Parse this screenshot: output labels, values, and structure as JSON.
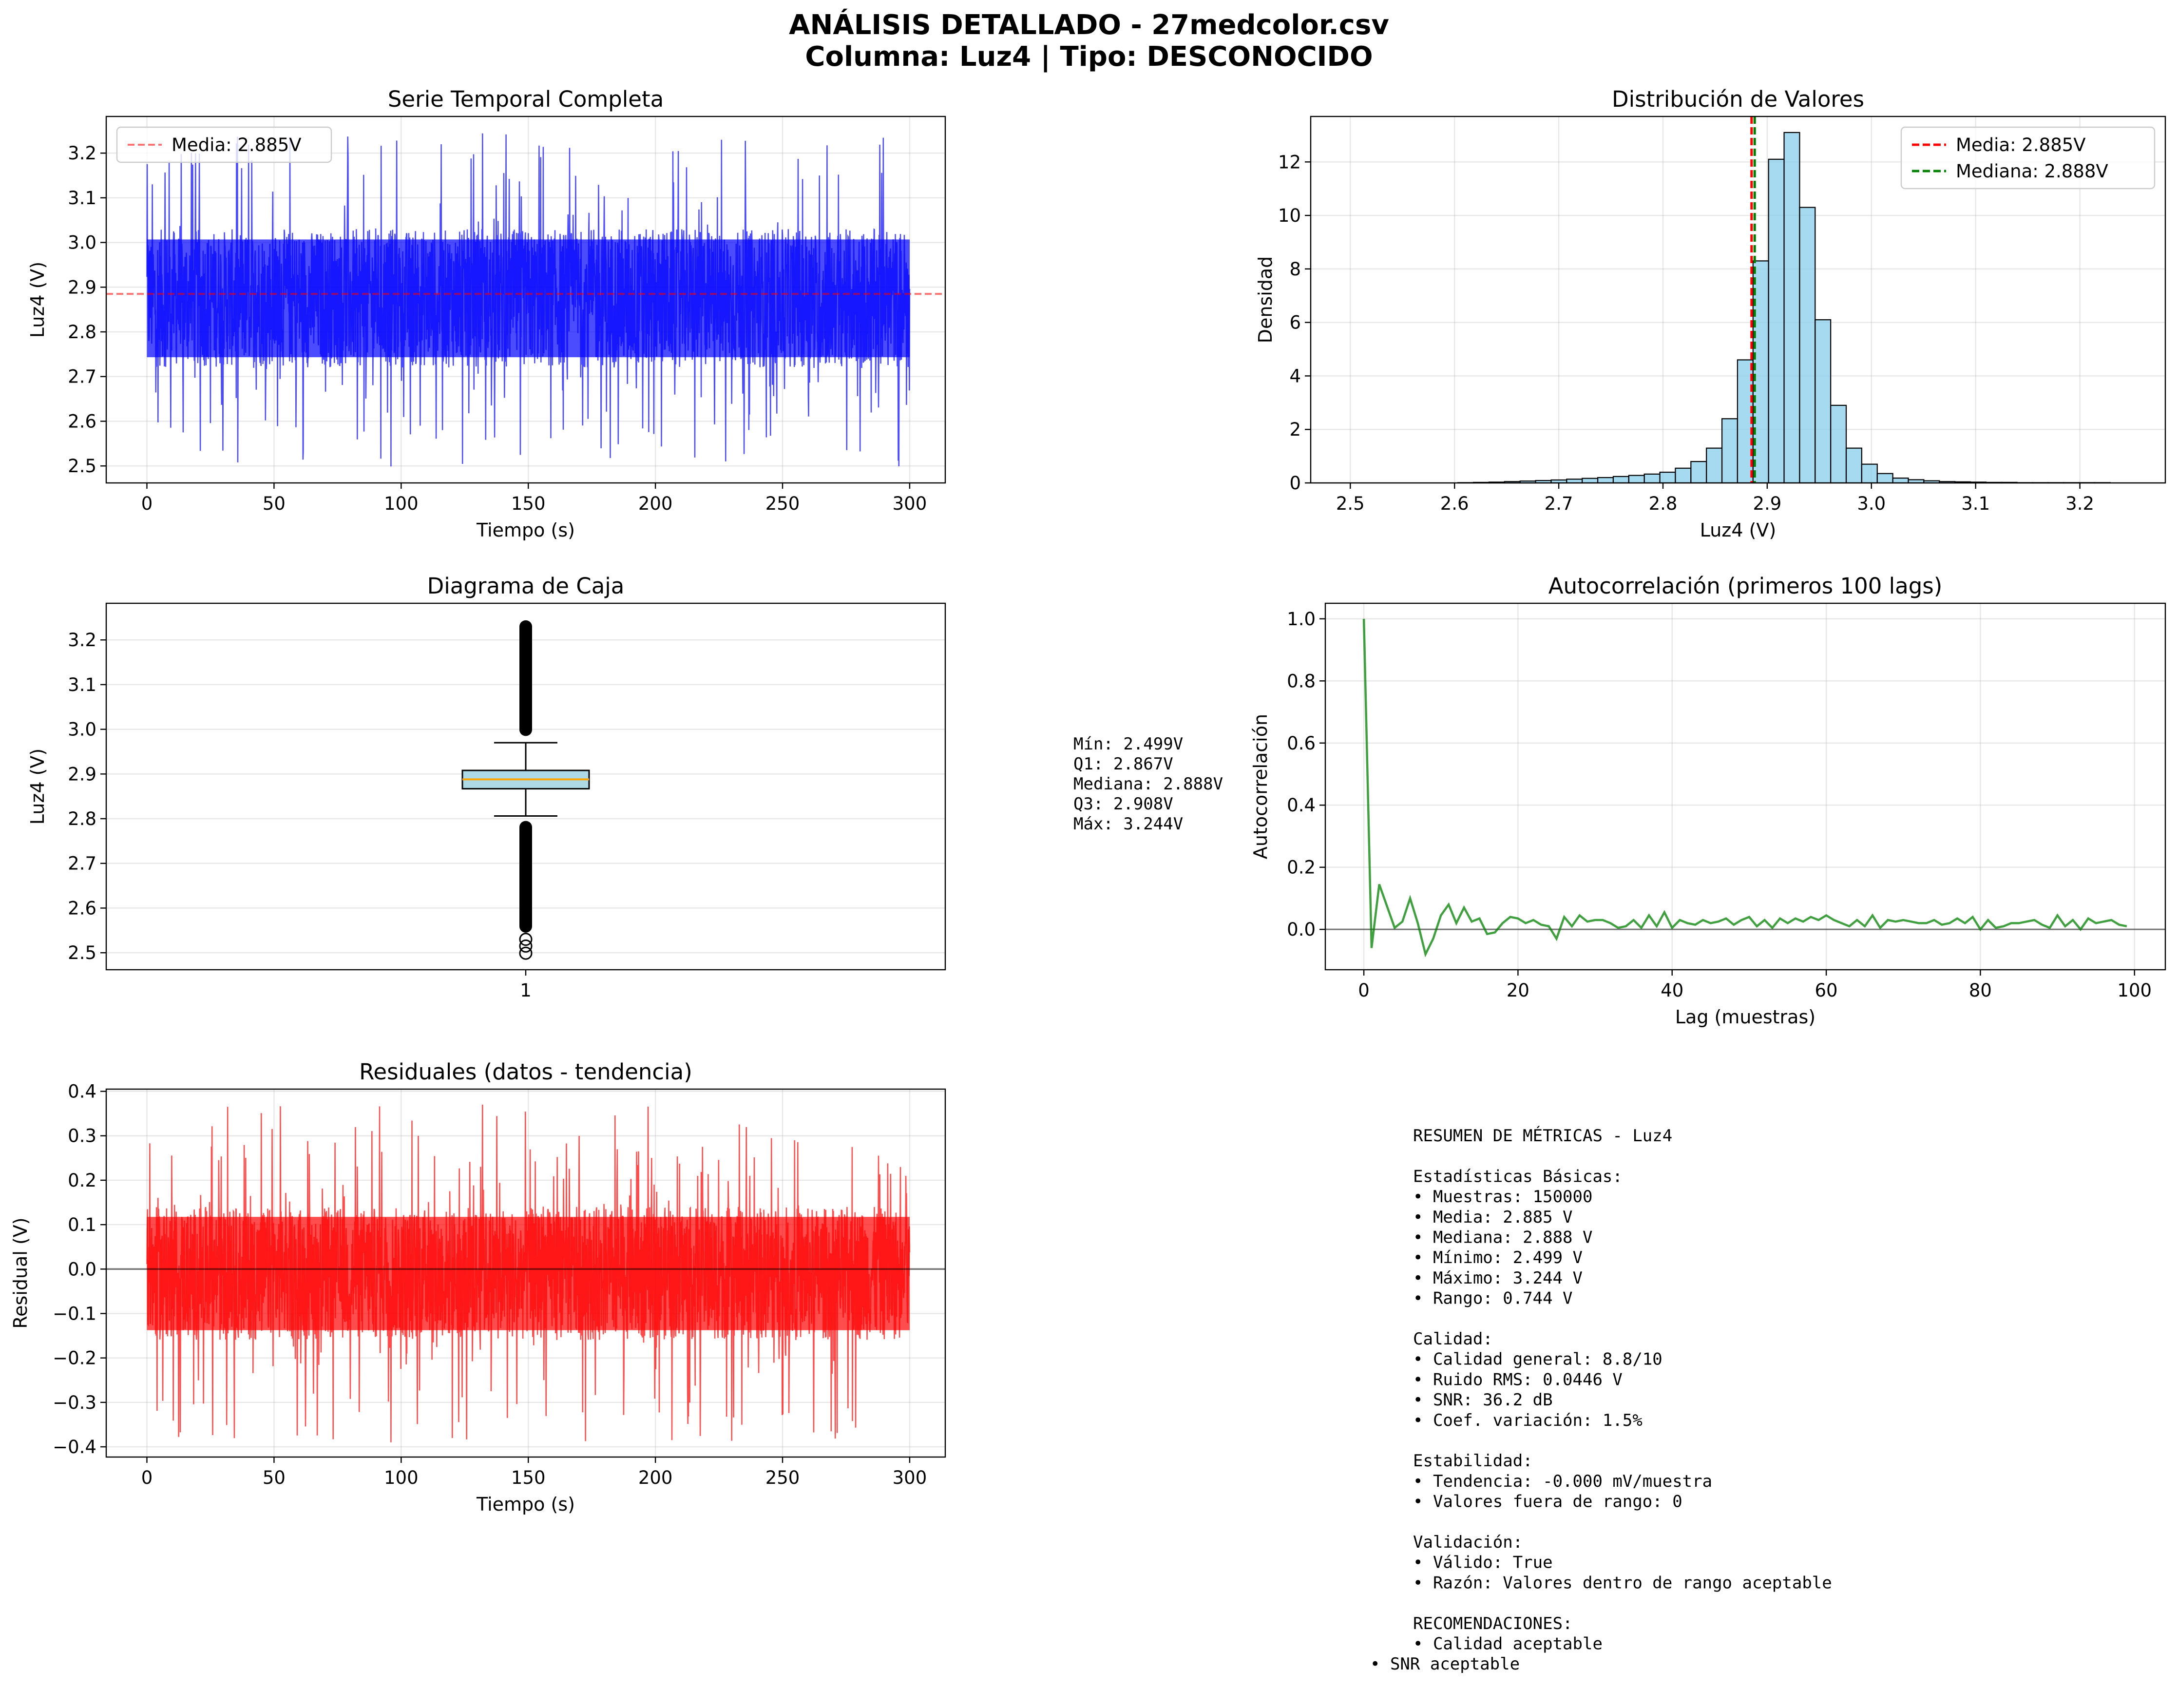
{
  "header": {
    "title_line1": "ANÁLISIS DETALLADO - 27medcolor.csv",
    "title_line2": "Columna: Luz4 | Tipo: DESCONOCIDO"
  },
  "colors": {
    "series_blue": "#0000ff",
    "residual_red": "#ff0000",
    "hist_fill": "#87ceeb",
    "mean_line": "#ff0000",
    "median_line": "#008000",
    "acf_green": "#008000",
    "box_fill": "#add8e6",
    "box_median": "#ffa500"
  },
  "chart_data": [
    {
      "id": "serie",
      "type": "line",
      "title": "Serie Temporal Completa",
      "xlabel": "Tiempo (s)",
      "ylabel": "Luz4 (V)",
      "xlim": [
        -16,
        314
      ],
      "ylim": [
        2.462,
        3.282
      ],
      "xticks": [
        0,
        50,
        100,
        150,
        200,
        250,
        300
      ],
      "yticks": [
        2.5,
        2.6,
        2.7,
        2.8,
        2.9,
        3.0,
        3.1,
        3.2
      ],
      "grid": true,
      "series": [
        {
          "name": "",
          "x_range": [
            0,
            300
          ],
          "mean": 2.885,
          "band_low": 2.72,
          "band_high": 3.03,
          "min": 2.499,
          "max": 3.244
        }
      ],
      "mean_line": 2.885,
      "legend": [
        {
          "label": "Media: 2.885V"
        }
      ],
      "legend_position": "upper left"
    },
    {
      "id": "hist",
      "type": "bar",
      "title": "Distribución de Valores",
      "xlabel": "Luz4 (V)",
      "ylabel": "Densidad",
      "xlim": [
        2.462,
        3.282
      ],
      "ylim": [
        0,
        13.7
      ],
      "xticks": [
        2.5,
        2.6,
        2.7,
        2.8,
        2.9,
        3.0,
        3.1,
        3.2
      ],
      "yticks": [
        0,
        2,
        4,
        6,
        8,
        10,
        12
      ],
      "grid": true,
      "bin_start": 2.499,
      "bin_width": 0.0149,
      "values": [
        0,
        0,
        0,
        0,
        0,
        0,
        0,
        0.01,
        0.02,
        0.03,
        0.05,
        0.07,
        0.09,
        0.11,
        0.14,
        0.17,
        0.2,
        0.24,
        0.28,
        0.33,
        0.4,
        0.55,
        0.8,
        1.3,
        2.4,
        4.6,
        8.3,
        12.1,
        13.1,
        10.3,
        6.1,
        2.9,
        1.3,
        0.7,
        0.35,
        0.18,
        0.12,
        0.08,
        0.05,
        0.04,
        0.03,
        0.02,
        0.02,
        0.01,
        0.01,
        0.01,
        0.01,
        0.01,
        0.01,
        0
      ],
      "mean_line": 2.885,
      "median_line": 2.888,
      "legend": [
        {
          "label": "Media: 2.885V"
        },
        {
          "label": "Mediana: 2.888V"
        }
      ],
      "legend_position": "upper right"
    },
    {
      "id": "box",
      "type": "box",
      "title": "Diagrama de Caja",
      "ylabel": "Luz4 (V)",
      "ylim": [
        2.462,
        3.282
      ],
      "yticks": [
        2.5,
        2.6,
        2.7,
        2.8,
        2.9,
        3.0,
        3.1,
        3.2
      ],
      "xticks": [
        "1"
      ],
      "grid": true,
      "min": 2.499,
      "q1": 2.867,
      "median": 2.888,
      "q3": 2.908,
      "max": 3.244,
      "whisker_low": 2.806,
      "whisker_high": 2.97,
      "stats_lines": [
        "Mín: 2.499V",
        "Q1: 2.867V",
        "Mediana: 2.888V",
        "Q3: 2.908V",
        "Máx: 3.244V"
      ]
    },
    {
      "id": "acf",
      "type": "line",
      "title": "Autocorrelación (primeros 100 lags)",
      "xlabel": "Lag (muestras)",
      "ylabel": "Autocorrelación",
      "xlim": [
        -5,
        104
      ],
      "ylim": [
        -0.13,
        1.05
      ],
      "xticks": [
        0,
        20,
        40,
        60,
        80,
        100
      ],
      "yticks": [
        0.0,
        0.2,
        0.4,
        0.6,
        0.8,
        1.0
      ],
      "grid": true,
      "zero_line": 0,
      "series": [
        {
          "name": "",
          "values": [
            1.0,
            -0.06,
            0.145,
            0.075,
            0.005,
            0.025,
            0.1,
            0.02,
            -0.08,
            -0.03,
            0.045,
            0.08,
            0.02,
            0.07,
            0.025,
            0.035,
            -0.015,
            -0.01,
            0.02,
            0.04,
            0.035,
            0.02,
            0.03,
            0.015,
            0.01,
            -0.03,
            0.04,
            0.01,
            0.045,
            0.025,
            0.03,
            0.03,
            0.02,
            0.005,
            0.01,
            0.03,
            0.005,
            0.045,
            0.01,
            0.055,
            0.005,
            0.03,
            0.02,
            0.015,
            0.03,
            0.02,
            0.025,
            0.035,
            0.015,
            0.03,
            0.04,
            0.01,
            0.03,
            0.005,
            0.035,
            0.02,
            0.035,
            0.025,
            0.04,
            0.03,
            0.045,
            0.03,
            0.02,
            0.01,
            0.03,
            0.01,
            0.045,
            0.005,
            0.03,
            0.025,
            0.03,
            0.025,
            0.02,
            0.02,
            0.03,
            0.015,
            0.02,
            0.035,
            0.02,
            0.04,
            0.0,
            0.03,
            0.005,
            0.01,
            0.02,
            0.02,
            0.025,
            0.03,
            0.015,
            0.005,
            0.045,
            0.01,
            0.03,
            0.0,
            0.035,
            0.02,
            0.025,
            0.03,
            0.015,
            0.01
          ]
        }
      ]
    },
    {
      "id": "resid",
      "type": "line",
      "title": "Residuales (datos - tendencia)",
      "xlabel": "Tiempo (s)",
      "ylabel": "Residual (V)",
      "xlim": [
        -16,
        314
      ],
      "ylim": [
        -0.423,
        0.405
      ],
      "xticks": [
        0,
        50,
        100,
        150,
        200,
        250,
        300
      ],
      "yticks": [
        -0.4,
        -0.3,
        -0.2,
        -0.1,
        0.0,
        0.1,
        0.2,
        0.3,
        0.4
      ],
      "grid": true,
      "zero_line": 0,
      "series": [
        {
          "name": "",
          "x_range": [
            0,
            300
          ],
          "band_low": -0.16,
          "band_high": 0.14,
          "min": -0.39,
          "max": 0.37
        }
      ]
    }
  ],
  "summary_lines": [
    "RESUMEN DE MÉTRICAS - Luz4",
    "",
    "Estadísticas Básicas:",
    "• Muestras: 150000",
    "• Media: 2.885 V",
    "• Mediana: 2.888 V",
    "• Mínimo: 2.499 V",
    "• Máximo: 3.244 V",
    "• Rango: 0.744 V",
    "",
    "Calidad:",
    "• Calidad general: 8.8/10",
    "• Ruido RMS: 0.0446 V",
    "• SNR: 36.2 dB",
    "• Coef. variación: 1.5%",
    "",
    "Estabilidad:",
    "• Tendencia: -0.000 mV/muestra",
    "• Valores fuera de rango: 0",
    "",
    "Validación:",
    "• Válido: True",
    "• Razón: Valores dentro de rango aceptable",
    "",
    "RECOMENDACIONES:",
    "• Calidad aceptable"
  ],
  "summary_last_line": "• SNR aceptable"
}
